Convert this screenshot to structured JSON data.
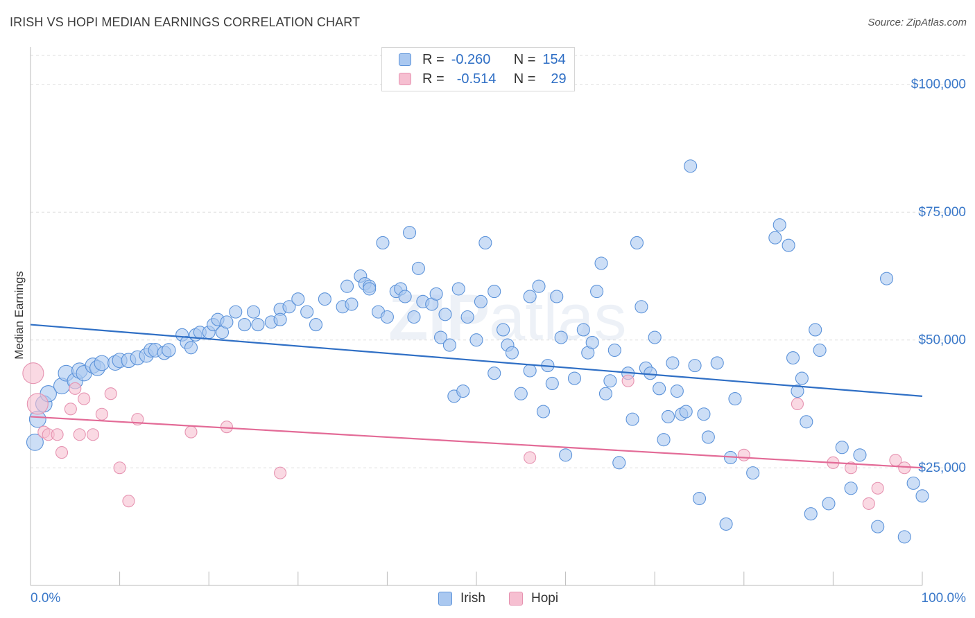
{
  "header": {
    "title": "IRISH VS HOPI MEDIAN EARNINGS CORRELATION CHART",
    "source": "Source: ZipAtlas.com"
  },
  "legend": {
    "rows": [
      {
        "r_label": "R =",
        "r_value": "-0.260",
        "n_label": "N =",
        "n_value": "154"
      },
      {
        "r_label": "R =",
        "r_value": "-0.514",
        "n_label": "N =",
        "n_value": "29"
      }
    ],
    "bottom": [
      "Irish",
      "Hopi"
    ]
  },
  "colors": {
    "irish_fill": "#aac8f0",
    "irish_stroke": "#5c93da",
    "irish_line": "#2f6fc5",
    "hopi_fill": "#f6bfd1",
    "hopi_stroke": "#e693b1",
    "hopi_line": "#e36b97",
    "axis_text": "#3a78c9",
    "grid": "#dddddd"
  },
  "chart_data": {
    "type": "scatter",
    "title": "IRISH VS HOPI MEDIAN EARNINGS CORRELATION CHART",
    "xlabel": "",
    "ylabel": "Median Earnings",
    "xlim": [
      0,
      100
    ],
    "ylim": [
      2000,
      107000
    ],
    "x_tick_labels": [
      "0.0%",
      "100.0%"
    ],
    "y_ticks": [
      25000,
      50000,
      75000,
      100000
    ],
    "y_tick_labels": [
      "$25,000",
      "$50,000",
      "$75,000",
      "$100,000"
    ],
    "grid": true,
    "legend_position": "top-center",
    "watermark": "ZIPatlas",
    "series": [
      {
        "name": "Irish",
        "r": -0.26,
        "n": 154,
        "trend": {
          "x": [
            0,
            100
          ],
          "y": [
            53000,
            39000
          ]
        },
        "points": [
          [
            0.5,
            30000
          ],
          [
            0.8,
            34500
          ],
          [
            1.5,
            37500
          ],
          [
            2,
            39500
          ],
          [
            3.5,
            41000
          ],
          [
            4,
            43500
          ],
          [
            5,
            42000
          ],
          [
            5.5,
            44000
          ],
          [
            6,
            43500
          ],
          [
            7,
            45000
          ],
          [
            7.5,
            44500
          ],
          [
            8,
            45500
          ],
          [
            9.5,
            45500
          ],
          [
            10,
            46000
          ],
          [
            11,
            46000
          ],
          [
            12,
            46500
          ],
          [
            13,
            47000
          ],
          [
            13.5,
            48000
          ],
          [
            14,
            48000
          ],
          [
            15,
            47500
          ],
          [
            15.5,
            48000
          ],
          [
            17,
            51000
          ],
          [
            17.5,
            49500
          ],
          [
            18,
            48500
          ],
          [
            18.5,
            51000
          ],
          [
            19,
            51500
          ],
          [
            20,
            51500
          ],
          [
            20.5,
            53000
          ],
          [
            21,
            54000
          ],
          [
            21.5,
            51500
          ],
          [
            22,
            53500
          ],
          [
            23,
            55500
          ],
          [
            24,
            53000
          ],
          [
            25,
            55500
          ],
          [
            25.5,
            53000
          ],
          [
            27,
            53500
          ],
          [
            28,
            56000
          ],
          [
            28,
            54000
          ],
          [
            29,
            56500
          ],
          [
            30,
            58000
          ],
          [
            31,
            55500
          ],
          [
            32,
            53000
          ],
          [
            33,
            58000
          ],
          [
            35,
            56500
          ],
          [
            35.5,
            60500
          ],
          [
            36,
            57000
          ],
          [
            37,
            62500
          ],
          [
            37.5,
            61000
          ],
          [
            38,
            60500
          ],
          [
            38,
            60000
          ],
          [
            39,
            55500
          ],
          [
            39.5,
            69000
          ],
          [
            40,
            54500
          ],
          [
            41,
            59500
          ],
          [
            41.5,
            60000
          ],
          [
            42,
            58500
          ],
          [
            42.5,
            71000
          ],
          [
            43,
            54500
          ],
          [
            43.5,
            64000
          ],
          [
            44,
            57500
          ],
          [
            45,
            57000
          ],
          [
            45.5,
            59000
          ],
          [
            46,
            50500
          ],
          [
            46.5,
            55000
          ],
          [
            47,
            49000
          ],
          [
            47.5,
            39000
          ],
          [
            48,
            60000
          ],
          [
            48.5,
            40000
          ],
          [
            49,
            54500
          ],
          [
            50,
            50000
          ],
          [
            50.5,
            57500
          ],
          [
            51,
            69000
          ],
          [
            52,
            43500
          ],
          [
            52,
            59500
          ],
          [
            53,
            52000
          ],
          [
            53.5,
            49000
          ],
          [
            54,
            47500
          ],
          [
            55,
            39500
          ],
          [
            56,
            44000
          ],
          [
            56,
            58500
          ],
          [
            57,
            60500
          ],
          [
            57.5,
            36000
          ],
          [
            58,
            45000
          ],
          [
            58.5,
            41500
          ],
          [
            59,
            58500
          ],
          [
            59.5,
            50500
          ],
          [
            60,
            27500
          ],
          [
            61,
            42500
          ],
          [
            62,
            52000
          ],
          [
            62.5,
            47500
          ],
          [
            63,
            49500
          ],
          [
            63.5,
            59500
          ],
          [
            64,
            65000
          ],
          [
            64.5,
            39500
          ],
          [
            65,
            42000
          ],
          [
            65.5,
            48000
          ],
          [
            66,
            26000
          ],
          [
            67,
            43500
          ],
          [
            67.5,
            34500
          ],
          [
            68,
            69000
          ],
          [
            68.5,
            56500
          ],
          [
            69,
            44500
          ],
          [
            69.5,
            43500
          ],
          [
            70,
            50500
          ],
          [
            70.5,
            40500
          ],
          [
            71,
            30500
          ],
          [
            71.5,
            35000
          ],
          [
            72,
            45500
          ],
          [
            72.5,
            40000
          ],
          [
            73,
            35500
          ],
          [
            73.5,
            36000
          ],
          [
            74,
            84000
          ],
          [
            74.5,
            45000
          ],
          [
            75,
            19000
          ],
          [
            75.5,
            35500
          ],
          [
            76,
            31000
          ],
          [
            77,
            45500
          ],
          [
            78,
            14000
          ],
          [
            78.5,
            27000
          ],
          [
            79,
            38500
          ],
          [
            81,
            24000
          ],
          [
            83.5,
            70000
          ],
          [
            84,
            72500
          ],
          [
            85,
            68500
          ],
          [
            85.5,
            46500
          ],
          [
            86,
            40000
          ],
          [
            86.5,
            42500
          ],
          [
            87,
            34000
          ],
          [
            87.5,
            16000
          ],
          [
            88,
            52000
          ],
          [
            88.5,
            48000
          ],
          [
            89.5,
            18000
          ],
          [
            91,
            29000
          ],
          [
            92,
            21000
          ],
          [
            93,
            27500
          ],
          [
            95,
            13500
          ],
          [
            96,
            62000
          ],
          [
            98,
            11500
          ],
          [
            99,
            22000
          ],
          [
            100,
            19500
          ]
        ]
      },
      {
        "name": "Hopi",
        "r": -0.514,
        "n": 29,
        "trend": {
          "x": [
            0,
            100
          ],
          "y": [
            35000,
            25000
          ]
        },
        "points": [
          [
            0.3,
            43500
          ],
          [
            0.8,
            37500
          ],
          [
            1.5,
            32000
          ],
          [
            2,
            31500
          ],
          [
            3,
            31500
          ],
          [
            3.5,
            28000
          ],
          [
            4.5,
            36500
          ],
          [
            5,
            40500
          ],
          [
            5.5,
            31500
          ],
          [
            6,
            38500
          ],
          [
            7,
            31500
          ],
          [
            8,
            35500
          ],
          [
            9,
            39500
          ],
          [
            10,
            25000
          ],
          [
            11,
            18500
          ],
          [
            12,
            34500
          ],
          [
            18,
            32000
          ],
          [
            22,
            33000
          ],
          [
            28,
            24000
          ],
          [
            56,
            27000
          ],
          [
            67,
            42000
          ],
          [
            80,
            27500
          ],
          [
            86,
            37500
          ],
          [
            90,
            26000
          ],
          [
            92,
            25000
          ],
          [
            94,
            18000
          ],
          [
            95,
            21000
          ],
          [
            97,
            26500
          ],
          [
            98,
            25000
          ]
        ]
      }
    ]
  }
}
